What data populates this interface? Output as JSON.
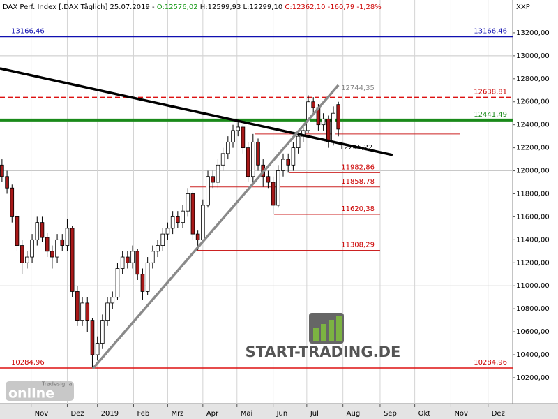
{
  "chart_data": {
    "type": "candlestick",
    "header": [
      {
        "text": "DAX Perf. Index [.DAX  Täglich] 25.07.2019 - ",
        "color": "#000000"
      },
      {
        "text": "O:12576,02",
        "color": "#1a9a1a"
      },
      {
        "text": " H:12599,93 L:12299,10 ",
        "color": "#000000"
      },
      {
        "text": "C:12362,10 -160,79 -1,28%",
        "color": "#cc0000"
      }
    ],
    "axis_unit": "XXP",
    "ylim": [
      9975,
      13485
    ],
    "xlim": [
      -0.4,
      101.7
    ],
    "yticks": [
      {
        "value": 10200,
        "label": "10200,00"
      },
      {
        "value": 10400,
        "label": "10400,00"
      },
      {
        "value": 10600,
        "label": "10600,00"
      },
      {
        "value": 10800,
        "label": "10800,00"
      },
      {
        "value": 11000,
        "label": "11000,00"
      },
      {
        "value": 11200,
        "label": "11200,00"
      },
      {
        "value": 11400,
        "label": "11400,00"
      },
      {
        "value": 11600,
        "label": "11600,00"
      },
      {
        "value": 11800,
        "label": "11800,00"
      },
      {
        "value": 12000,
        "label": "12000,00"
      },
      {
        "value": 12200,
        "label": "12200,00"
      },
      {
        "value": 12400,
        "label": "12400,00"
      },
      {
        "value": 12600,
        "label": "12600,00"
      },
      {
        "value": 12800,
        "label": "12800,00"
      },
      {
        "value": 13000,
        "label": "13000,00"
      },
      {
        "value": 13200,
        "label": "13200,00"
      }
    ],
    "grid_y": [
      11000,
      12000,
      13000
    ],
    "xticks": [
      {
        "value": 5.8,
        "label": "Nov"
      },
      {
        "value": 13,
        "label": "Dez"
      },
      {
        "value": 19,
        "label": "2019"
      },
      {
        "value": 26.2,
        "label": "Feb"
      },
      {
        "value": 33,
        "label": "Mrz"
      },
      {
        "value": 40,
        "label": "Apr"
      },
      {
        "value": 46.8,
        "label": "Mai"
      },
      {
        "value": 54,
        "label": "Jun"
      },
      {
        "value": 60.7,
        "label": "Jul"
      },
      {
        "value": 67.9,
        "label": "Aug"
      },
      {
        "value": 75.3,
        "label": "Sep"
      },
      {
        "value": 82.2,
        "label": "Okt"
      },
      {
        "value": 89.4,
        "label": "Nov"
      },
      {
        "value": 96.8,
        "label": "Dez"
      }
    ],
    "candles": {
      "open": [
        12050,
        11950,
        11850,
        11600,
        11350,
        11200,
        11250,
        11400,
        11550,
        11420,
        11300,
        11250,
        11400,
        11350,
        11500,
        10950,
        10700,
        10850,
        10700,
        10400,
        10500,
        10700,
        10850,
        10900,
        11150,
        11250,
        11200,
        11300,
        11100,
        10950,
        11200,
        11300,
        11350,
        11450,
        11500,
        11600,
        11550,
        11650,
        11800,
        11450,
        11400,
        11700,
        11950,
        11900,
        12050,
        12150,
        12250,
        12350,
        12380,
        12200,
        11950,
        12250,
        12050,
        11950,
        11900,
        11700,
        12000,
        12100,
        12050,
        12200,
        12300,
        12350,
        12600,
        12550,
        12400,
        12450,
        12250,
        12576.02
      ],
      "high": [
        12100,
        12000,
        11880,
        11650,
        11400,
        11300,
        11450,
        11600,
        11600,
        11460,
        11350,
        11450,
        11450,
        11580,
        11520,
        11000,
        10900,
        10900,
        10720,
        10560,
        10750,
        10900,
        10950,
        11200,
        11300,
        11300,
        11350,
        11320,
        11150,
        11250,
        11350,
        11400,
        11500,
        11550,
        11650,
        11650,
        11700,
        11850,
        11820,
        11480,
        11750,
        12000,
        12000,
        12100,
        12200,
        12300,
        12400,
        12430,
        12400,
        12250,
        12320,
        12280,
        12100,
        12000,
        11950,
        12050,
        12150,
        12150,
        12250,
        12350,
        12400,
        12656,
        12640,
        12580,
        12500,
        12480,
        12560,
        12599.93
      ],
      "low": [
        11900,
        11800,
        11550,
        11300,
        11100,
        11150,
        11200,
        11350,
        11380,
        11250,
        11150,
        11200,
        11300,
        11300,
        10900,
        10650,
        10650,
        10600,
        10285,
        10350,
        10450,
        10650,
        10800,
        10880,
        11100,
        11150,
        11150,
        11050,
        10880,
        10920,
        11150,
        11250,
        11300,
        11400,
        11450,
        11500,
        11500,
        11600,
        11400,
        11310,
        11380,
        11680,
        11850,
        11850,
        12000,
        12100,
        12200,
        12300,
        12150,
        11900,
        11900,
        12000,
        11860,
        11850,
        11620,
        11680,
        11950,
        11983,
        12000,
        12150,
        12250,
        12330,
        12500,
        12350,
        12350,
        12200,
        12220,
        12299.1
      ],
      "close": [
        11950,
        11850,
        11600,
        11350,
        11200,
        11250,
        11400,
        11550,
        11420,
        11300,
        11250,
        11400,
        11350,
        11500,
        10950,
        10700,
        10850,
        10700,
        10400,
        10500,
        10700,
        10850,
        10900,
        11150,
        11250,
        11200,
        11300,
        11100,
        10950,
        11200,
        11300,
        11350,
        11450,
        11500,
        11600,
        11550,
        11650,
        11800,
        11450,
        11400,
        11700,
        11950,
        11900,
        12050,
        12150,
        12250,
        12350,
        12380,
        12200,
        11950,
        12250,
        12050,
        11950,
        11900,
        11700,
        12000,
        12100,
        12050,
        12200,
        12300,
        12350,
        12600,
        12550,
        12400,
        12450,
        12250,
        12500,
        12362.1
      ],
      "up_color": "#ffffff",
      "down_color": "#a81818"
    },
    "levels": [
      {
        "value": 13166.46,
        "label": "13166,46",
        "color": "#1010b0",
        "width": 1.5,
        "dash": false,
        "label_color": "#1010b0",
        "left_label": "13166,46"
      },
      {
        "value": 12638.81,
        "label": "12638,81",
        "color": "#dd1111",
        "width": 1.5,
        "dash": true,
        "label_color": "#cc0000"
      },
      {
        "value": 12441.49,
        "label": "12441,49",
        "color": "#1a8a1a",
        "width": 4,
        "dash": false,
        "label_color": "#1a8a1a"
      },
      {
        "value": 10284.96,
        "label": "10284,96",
        "color": "#dd1111",
        "width": 1.5,
        "dash": false,
        "label_color": "#cc0000",
        "left_label": "10284,96"
      },
      {
        "value": 12320,
        "color": "#cc2222",
        "width": 1,
        "dash": false,
        "start": 50.3,
        "end": 91.2
      },
      {
        "value": 11982.86,
        "label": "11982,86",
        "color": "#cc2222",
        "width": 1,
        "dash": false,
        "start": 57.2,
        "end": 75.3,
        "label_color": "#cc0000"
      },
      {
        "value": 11858.78,
        "label": "11858,78",
        "color": "#cc2222",
        "width": 1,
        "dash": false,
        "start": 37.4,
        "end": 75.3,
        "label_color": "#cc0000"
      },
      {
        "value": 11620.38,
        "label": "11620,38",
        "color": "#cc2222",
        "width": 1,
        "dash": false,
        "start": 54.2,
        "end": 75.3,
        "label_color": "#cc0000"
      },
      {
        "value": 11308.29,
        "label": "11308,29",
        "color": "#cc2222",
        "width": 1,
        "dash": false,
        "start": 38.5,
        "end": 75.3,
        "label_color": "#cc0000"
      }
    ],
    "trendlines": [
      {
        "x": [
          -0.4,
          77.8
        ],
        "y": [
          12890,
          12137
        ],
        "color": "#000000",
        "width": 3.5
      },
      {
        "x": [
          18.1,
          67
        ],
        "y": [
          10280,
          12745
        ],
        "color": "#8a8a8a",
        "width": 3.5,
        "label": "12744,35",
        "label_color": "#888888"
      }
    ],
    "annotation": {
      "text": "12245,22",
      "x": 67.2,
      "y": 12205
    },
    "logo_text": "START-TRADING.DE",
    "badge": {
      "small": "Tradesignal",
      "big": "online"
    }
  }
}
